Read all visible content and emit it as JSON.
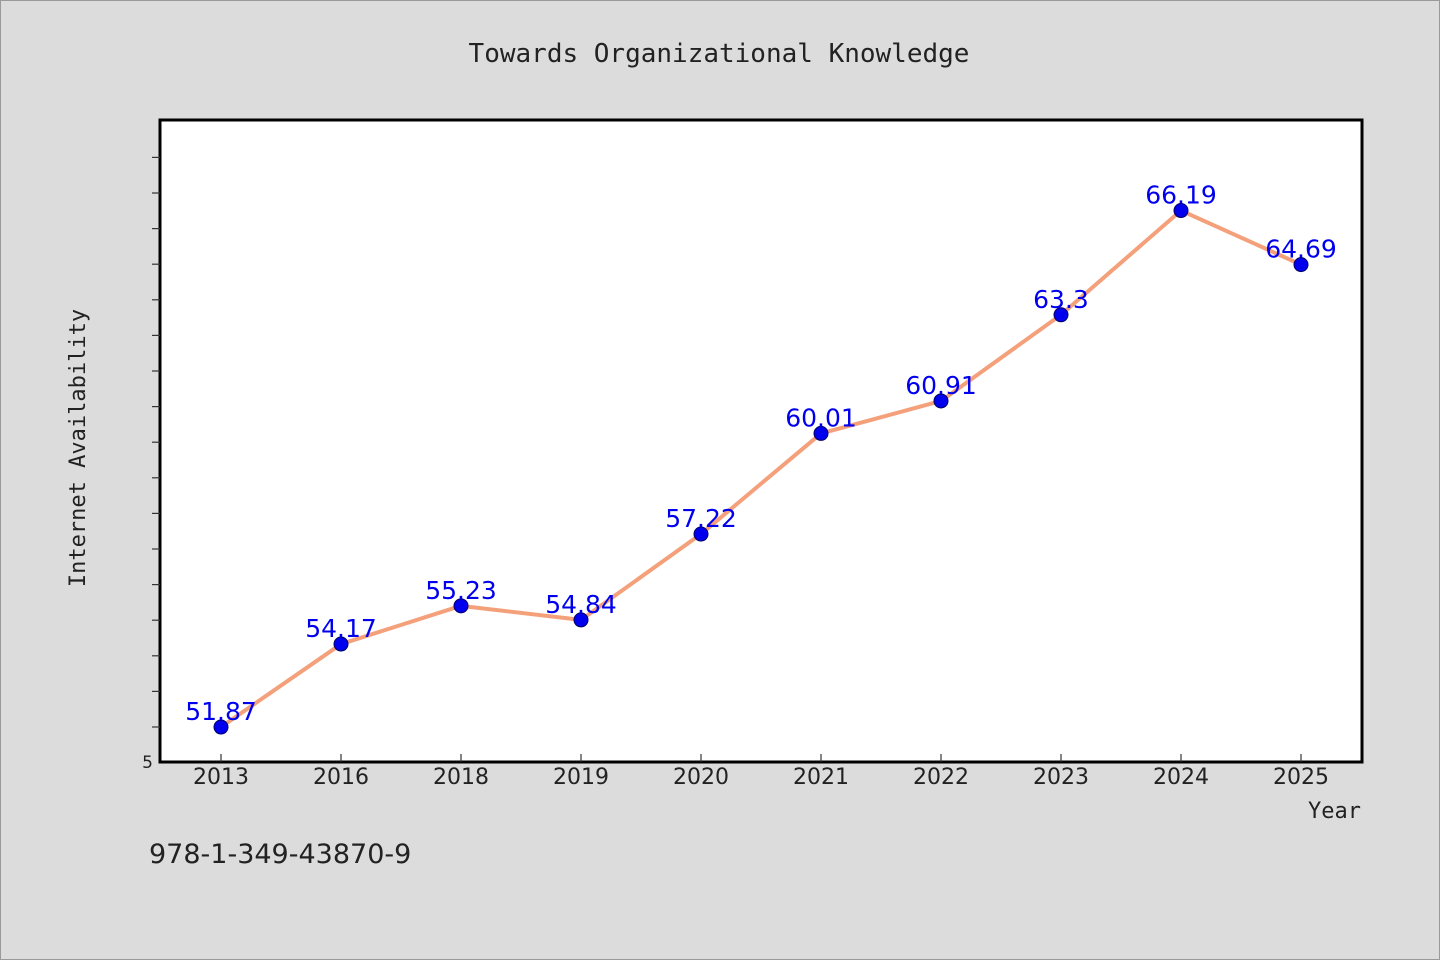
{
  "chart_data": {
    "type": "line",
    "title": "Towards Organizational Knowledge",
    "xlabel": "Year",
    "ylabel": "Internet Availability",
    "categories": [
      "2013",
      "2016",
      "2018",
      "2019",
      "2020",
      "2021",
      "2022",
      "2023",
      "2024",
      "2025"
    ],
    "series": [
      {
        "values": [
          51.87,
          54.17,
          55.23,
          54.84,
          57.22,
          60.01,
          60.91,
          63.3,
          66.19,
          64.69
        ],
        "labels": [
          "51.87",
          "54.17",
          "55.23",
          "54.84",
          "57.22",
          "60.01",
          "60.91",
          "63.3",
          "66.19",
          "64.69"
        ]
      }
    ],
    "ylim": [
      50.9,
      68.7
    ],
    "y_tick_labels": [
      "5"
    ],
    "grid": false,
    "legend": "none"
  },
  "footer": {
    "isbn": "978-1-349-43870-9"
  },
  "colors": {
    "background": "#dcdcdc",
    "plot_area": "#ffffff",
    "line": "#f4a07a",
    "marker": "#0000ee",
    "data_label": "#0000ee",
    "text": "#222222"
  }
}
